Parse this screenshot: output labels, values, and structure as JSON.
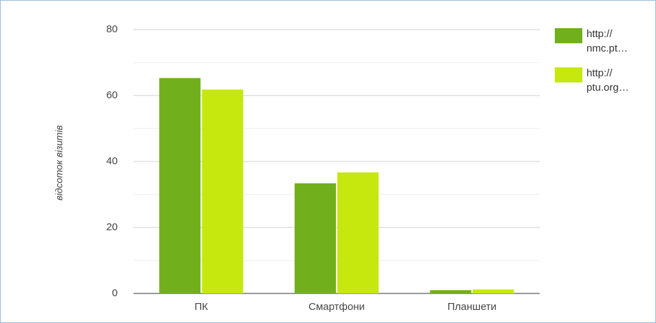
{
  "chart_data": {
    "type": "bar",
    "ylabel": "відсоток візитів",
    "categories": [
      "ПК",
      "Смартфони",
      "Планшети"
    ],
    "series": [
      {
        "name": "http:// nmc.pt…",
        "color": "#71b01c",
        "values": [
          65.3,
          33.4,
          1.0
        ]
      },
      {
        "name": "http:// ptu.org…",
        "color": "#c6e80f",
        "values": [
          61.8,
          36.7,
          1.2
        ]
      }
    ],
    "ylim": [
      0,
      80
    ],
    "yticks": [
      0,
      20,
      40,
      60,
      80
    ],
    "minor_yticks": [
      10,
      30,
      50,
      70
    ],
    "grid": true,
    "legend": "right"
  }
}
